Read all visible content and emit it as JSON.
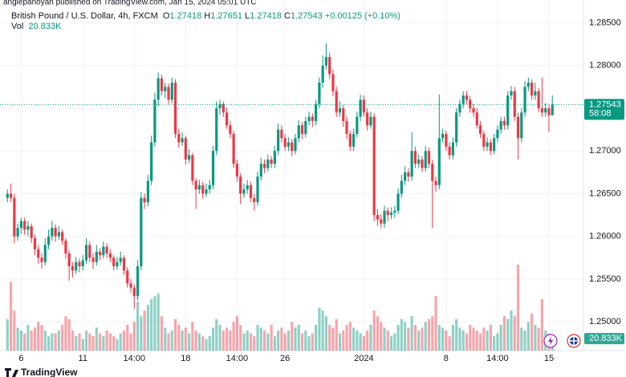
{
  "header": {
    "publisher_line": "angiepanoyan published on TradingView.com, Jan 15, 2024 05:01 UTC",
    "symbol": "British Pound / U.S. Dollar, 4h, FXCM",
    "ohlc_letters": [
      "O",
      "H",
      "L",
      "C"
    ],
    "change": "+0.00125 (+0.10%)",
    "volume_title": "Vol",
    "volume_label": "20.833K",
    "countdown": "58:08",
    "logo": "TradingView"
  },
  "chart_data": {
    "type": "candlestick",
    "up_color": "#089981",
    "down_color": "#f23645",
    "grid": true,
    "ylim": [
      1.2465,
      1.2872
    ],
    "yticks": [
      {
        "value": 1.25,
        "label": "1.25000"
      },
      {
        "value": 1.255,
        "label": "1.25500"
      },
      {
        "value": 1.26,
        "label": "1.26000"
      },
      {
        "value": 1.265,
        "label": "1.26500"
      },
      {
        "value": 1.27,
        "label": "1.27000"
      },
      {
        "value": 1.275,
        "label": "1.27500"
      },
      {
        "value": 1.28,
        "label": "1.28000"
      },
      {
        "value": 1.285,
        "label": "1.28500"
      }
    ],
    "categories": [
      null,
      null,
      null,
      null,
      "6",
      null,
      null,
      null,
      null,
      null,
      null,
      null,
      null,
      null,
      null,
      null,
      null,
      null,
      null,
      null,
      null,
      null,
      "11",
      null,
      null,
      null,
      null,
      null,
      null,
      null,
      null,
      null,
      null,
      null,
      null,
      null,
      null,
      "14:00",
      null,
      null,
      null,
      null,
      null,
      null,
      null,
      null,
      null,
      null,
      null,
      null,
      null,
      null,
      "18",
      null,
      null,
      null,
      null,
      null,
      null,
      null,
      null,
      null,
      null,
      null,
      null,
      null,
      null,
      "14:00",
      null,
      null,
      null,
      null,
      null,
      null,
      null,
      null,
      null,
      null,
      null,
      null,
      null,
      "26",
      null,
      null,
      null,
      null,
      null,
      null,
      null,
      null,
      null,
      null,
      null,
      null,
      null,
      null,
      null,
      null,
      null,
      null,
      null,
      null,
      null,
      null,
      "2024",
      null,
      null,
      null,
      null,
      null,
      null,
      null,
      null,
      null,
      null,
      null,
      null,
      null,
      null,
      null,
      null,
      null,
      null,
      null,
      null,
      null,
      null,
      null,
      "8",
      null,
      null,
      null,
      null,
      null,
      null,
      null,
      null,
      null,
      null,
      null,
      null,
      null,
      null,
      "14:00",
      null,
      null,
      null,
      null,
      null,
      null,
      null,
      null,
      null,
      null,
      null,
      null,
      null,
      null,
      "15",
      null
    ],
    "ohlc": [
      [
        1.2645,
        1.2655,
        1.264,
        1.265
      ],
      [
        1.265,
        1.2662,
        1.264,
        1.2645
      ],
      [
        1.2645,
        1.265,
        1.2592,
        1.26
      ],
      [
        1.26,
        1.2615,
        1.2595,
        1.261
      ],
      [
        1.261,
        1.2622,
        1.2603,
        1.2618
      ],
      [
        1.2618,
        1.2622,
        1.2602,
        1.2608
      ],
      [
        1.2608,
        1.2618,
        1.26,
        1.2612
      ],
      [
        1.2612,
        1.2615,
        1.2592,
        1.2598
      ],
      [
        1.2598,
        1.2602,
        1.2578,
        1.2585
      ],
      [
        1.2585,
        1.259,
        1.2568,
        1.2575
      ],
      [
        1.2575,
        1.258,
        1.2562,
        1.257
      ],
      [
        1.257,
        1.2598,
        1.2566,
        1.259
      ],
      [
        1.259,
        1.2608,
        1.2585,
        1.26
      ],
      [
        1.26,
        1.2618,
        1.2595,
        1.261
      ],
      [
        1.261,
        1.2614,
        1.2594,
        1.26
      ],
      [
        1.26,
        1.2612,
        1.2596,
        1.2605
      ],
      [
        1.2605,
        1.2608,
        1.259,
        1.2595
      ],
      [
        1.2595,
        1.2598,
        1.2574,
        1.258
      ],
      [
        1.258,
        1.2584,
        1.2548,
        1.2565
      ],
      [
        1.2565,
        1.257,
        1.2552,
        1.256
      ],
      [
        1.256,
        1.2576,
        1.2556,
        1.257
      ],
      [
        1.257,
        1.2574,
        1.2558,
        1.2565
      ],
      [
        1.2565,
        1.2578,
        1.256,
        1.2572
      ],
      [
        1.2572,
        1.2598,
        1.2568,
        1.259
      ],
      [
        1.259,
        1.2594,
        1.257,
        1.2575
      ],
      [
        1.2575,
        1.258,
        1.2562,
        1.257
      ],
      [
        1.257,
        1.259,
        1.2566,
        1.2582
      ],
      [
        1.2582,
        1.2586,
        1.2572,
        1.2578
      ],
      [
        1.2578,
        1.2594,
        1.2574,
        1.2588
      ],
      [
        1.2588,
        1.2592,
        1.2575,
        1.258
      ],
      [
        1.258,
        1.2585,
        1.257,
        1.2575
      ],
      [
        1.2575,
        1.2578,
        1.256,
        1.2565
      ],
      [
        1.2565,
        1.2576,
        1.2561,
        1.257
      ],
      [
        1.257,
        1.2582,
        1.2566,
        1.2575
      ],
      [
        1.2575,
        1.2578,
        1.2555,
        1.256
      ],
      [
        1.256,
        1.2564,
        1.254,
        1.2545
      ],
      [
        1.2545,
        1.255,
        1.2534,
        1.254
      ],
      [
        1.254,
        1.2544,
        1.2515,
        1.253
      ],
      [
        1.253,
        1.2572,
        1.2525,
        1.2565
      ],
      [
        1.2565,
        1.2652,
        1.256,
        1.2645
      ],
      [
        1.2645,
        1.265,
        1.2632,
        1.264
      ],
      [
        1.264,
        1.2672,
        1.2635,
        1.2665
      ],
      [
        1.2665,
        1.2718,
        1.266,
        1.271
      ],
      [
        1.271,
        1.2768,
        1.2705,
        1.276
      ],
      [
        1.276,
        1.2792,
        1.2752,
        1.2785
      ],
      [
        1.2785,
        1.2789,
        1.2765,
        1.277
      ],
      [
        1.277,
        1.278,
        1.2762,
        1.2775
      ],
      [
        1.2775,
        1.2779,
        1.2755,
        1.276
      ],
      [
        1.276,
        1.2786,
        1.2756,
        1.278
      ],
      [
        1.278,
        1.2784,
        1.2715,
        1.272
      ],
      [
        1.272,
        1.2726,
        1.2704,
        1.271
      ],
      [
        1.271,
        1.2722,
        1.2706,
        1.2715
      ],
      [
        1.2715,
        1.2718,
        1.2684,
        1.269
      ],
      [
        1.269,
        1.2702,
        1.2686,
        1.2695
      ],
      [
        1.2695,
        1.2698,
        1.266,
        1.2665
      ],
      [
        1.2665,
        1.2668,
        1.2632,
        1.2655
      ],
      [
        1.2655,
        1.2666,
        1.265,
        1.266
      ],
      [
        1.266,
        1.2664,
        1.2644,
        1.265
      ],
      [
        1.265,
        1.2662,
        1.2646,
        1.2655
      ],
      [
        1.2655,
        1.2666,
        1.265,
        1.266
      ],
      [
        1.266,
        1.2706,
        1.2655,
        1.27
      ],
      [
        1.27,
        1.2758,
        1.2695,
        1.275
      ],
      [
        1.275,
        1.276,
        1.2742,
        1.2755
      ],
      [
        1.2755,
        1.2758,
        1.274,
        1.2745
      ],
      [
        1.2745,
        1.275,
        1.2726,
        1.273
      ],
      [
        1.273,
        1.2735,
        1.2715,
        1.272
      ],
      [
        1.272,
        1.2724,
        1.268,
        1.2685
      ],
      [
        1.2685,
        1.269,
        1.2664,
        1.267
      ],
      [
        1.267,
        1.2674,
        1.2638,
        1.265
      ],
      [
        1.265,
        1.2662,
        1.2645,
        1.2655
      ],
      [
        1.2655,
        1.2666,
        1.265,
        1.266
      ],
      [
        1.266,
        1.2664,
        1.264,
        1.2645
      ],
      [
        1.2645,
        1.265,
        1.263,
        1.264
      ],
      [
        1.264,
        1.2676,
        1.2636,
        1.267
      ],
      [
        1.267,
        1.2692,
        1.2665,
        1.2685
      ],
      [
        1.2685,
        1.269,
        1.2674,
        1.268
      ],
      [
        1.268,
        1.2696,
        1.2676,
        1.269
      ],
      [
        1.269,
        1.2694,
        1.268,
        1.2685
      ],
      [
        1.2685,
        1.2706,
        1.268,
        1.27
      ],
      [
        1.27,
        1.2732,
        1.2695,
        1.2725
      ],
      [
        1.2725,
        1.273,
        1.271,
        1.2715
      ],
      [
        1.2715,
        1.272,
        1.27,
        1.2705
      ],
      [
        1.2705,
        1.2716,
        1.27,
        1.271
      ],
      [
        1.271,
        1.2714,
        1.2694,
        1.27
      ],
      [
        1.27,
        1.272,
        1.2696,
        1.2715
      ],
      [
        1.2715,
        1.2736,
        1.271,
        1.273
      ],
      [
        1.273,
        1.2734,
        1.2714,
        1.272
      ],
      [
        1.272,
        1.274,
        1.2716,
        1.2735
      ],
      [
        1.2735,
        1.2746,
        1.273,
        1.274
      ],
      [
        1.274,
        1.2744,
        1.2728,
        1.2735
      ],
      [
        1.2735,
        1.276,
        1.273,
        1.2755
      ],
      [
        1.2755,
        1.2786,
        1.275,
        1.278
      ],
      [
        1.278,
        1.2812,
        1.2774,
        1.28
      ],
      [
        1.28,
        1.2826,
        1.2795,
        1.281
      ],
      [
        1.281,
        1.2815,
        1.2784,
        1.279
      ],
      [
        1.279,
        1.2795,
        1.2764,
        1.277
      ],
      [
        1.277,
        1.2775,
        1.274,
        1.2745
      ],
      [
        1.2745,
        1.2758,
        1.274,
        1.275
      ],
      [
        1.275,
        1.2754,
        1.2728,
        1.2735
      ],
      [
        1.2735,
        1.274,
        1.2714,
        1.272
      ],
      [
        1.272,
        1.2724,
        1.27,
        1.2705
      ],
      [
        1.2705,
        1.2726,
        1.27,
        1.272
      ],
      [
        1.272,
        1.2746,
        1.2716,
        1.274
      ],
      [
        1.274,
        1.2766,
        1.2735,
        1.276
      ],
      [
        1.276,
        1.2765,
        1.274,
        1.2745
      ],
      [
        1.2745,
        1.275,
        1.2724,
        1.273
      ],
      [
        1.273,
        1.2746,
        1.2726,
        1.274
      ],
      [
        1.274,
        1.2744,
        1.2618,
        1.2625
      ],
      [
        1.2625,
        1.2632,
        1.2612,
        1.262
      ],
      [
        1.262,
        1.2626,
        1.261,
        1.2615
      ],
      [
        1.2615,
        1.2636,
        1.261,
        1.263
      ],
      [
        1.263,
        1.2634,
        1.2618,
        1.2625
      ],
      [
        1.2625,
        1.2634,
        1.262,
        1.2628
      ],
      [
        1.2628,
        1.2636,
        1.2622,
        1.263
      ],
      [
        1.263,
        1.2656,
        1.2626,
        1.265
      ],
      [
        1.265,
        1.2672,
        1.2645,
        1.2665
      ],
      [
        1.2665,
        1.2682,
        1.266,
        1.2675
      ],
      [
        1.2675,
        1.268,
        1.2664,
        1.267
      ],
      [
        1.267,
        1.2722,
        1.2665,
        1.27
      ],
      [
        1.27,
        1.2705,
        1.268,
        1.2685
      ],
      [
        1.2685,
        1.2696,
        1.268,
        1.269
      ],
      [
        1.269,
        1.2694,
        1.2675,
        1.268
      ],
      [
        1.268,
        1.2706,
        1.2676,
        1.27
      ],
      [
        1.27,
        1.2704,
        1.268,
        1.2685
      ],
      [
        1.2685,
        1.269,
        1.261,
        1.2665
      ],
      [
        1.2665,
        1.267,
        1.2652,
        1.266
      ],
      [
        1.266,
        1.2766,
        1.2655,
        1.2715
      ],
      [
        1.2715,
        1.2726,
        1.271,
        1.272
      ],
      [
        1.272,
        1.2724,
        1.27,
        1.2705
      ],
      [
        1.2705,
        1.271,
        1.269,
        1.2695
      ],
      [
        1.2695,
        1.2716,
        1.269,
        1.271
      ],
      [
        1.271,
        1.275,
        1.2705,
        1.2745
      ],
      [
        1.2745,
        1.276,
        1.274,
        1.2755
      ],
      [
        1.2755,
        1.277,
        1.275,
        1.2765
      ],
      [
        1.2765,
        1.277,
        1.2755,
        1.276
      ],
      [
        1.276,
        1.2764,
        1.2745,
        1.275
      ],
      [
        1.275,
        1.2755,
        1.274,
        1.2745
      ],
      [
        1.2745,
        1.275,
        1.2726,
        1.273
      ],
      [
        1.273,
        1.2735,
        1.2715,
        1.272
      ],
      [
        1.272,
        1.2724,
        1.27,
        1.2705
      ],
      [
        1.2705,
        1.2716,
        1.27,
        1.271
      ],
      [
        1.271,
        1.2714,
        1.2695,
        1.27
      ],
      [
        1.27,
        1.272,
        1.2696,
        1.2715
      ],
      [
        1.2715,
        1.273,
        1.271,
        1.2725
      ],
      [
        1.2725,
        1.274,
        1.272,
        1.2735
      ],
      [
        1.2735,
        1.274,
        1.2725,
        1.273
      ],
      [
        1.273,
        1.277,
        1.2725,
        1.2765
      ],
      [
        1.2765,
        1.2776,
        1.276,
        1.277
      ],
      [
        1.277,
        1.2775,
        1.2735,
        1.274
      ],
      [
        1.274,
        1.2745,
        1.269,
        1.2715
      ],
      [
        1.2715,
        1.275,
        1.271,
        1.2745
      ],
      [
        1.2745,
        1.2782,
        1.274,
        1.2775
      ],
      [
        1.2775,
        1.2786,
        1.277,
        1.278
      ],
      [
        1.278,
        1.2784,
        1.276,
        1.2765
      ],
      [
        1.2765,
        1.278,
        1.276,
        1.277
      ],
      [
        1.277,
        1.2774,
        1.2745,
        1.275
      ],
      [
        1.275,
        1.2786,
        1.274,
        1.2745
      ],
      [
        1.2745,
        1.2756,
        1.274,
        1.275
      ],
      [
        1.275,
        1.2754,
        1.2722,
        1.27418
      ],
      [
        1.27418,
        1.27651,
        1.27418,
        1.27543
      ]
    ],
    "volume": [
      55,
      120,
      70,
      40,
      35,
      30,
      45,
      35,
      40,
      50,
      45,
      35,
      25,
      30,
      30,
      35,
      45,
      60,
      55,
      35,
      25,
      30,
      20,
      35,
      30,
      25,
      40,
      30,
      25,
      35,
      30,
      25,
      20,
      30,
      35,
      45,
      30,
      50,
      85,
      60,
      70,
      80,
      90,
      95,
      100,
      60,
      40,
      30,
      35,
      55,
      45,
      35,
      40,
      30,
      50,
      35,
      30,
      25,
      20,
      25,
      40,
      55,
      45,
      35,
      40,
      35,
      50,
      60,
      45,
      30,
      35,
      30,
      25,
      45,
      40,
      35,
      30,
      45,
      25,
      35,
      40,
      30,
      35,
      50,
      40,
      45,
      30,
      35,
      25,
      30,
      45,
      75,
      70,
      60,
      45,
      40,
      55,
      30,
      35,
      45,
      50,
      40,
      35,
      30,
      25,
      35,
      45,
      70,
      60,
      50,
      40,
      35,
      25,
      30,
      45,
      55,
      50,
      40,
      60,
      45,
      35,
      40,
      50,
      55,
      60,
      95,
      45,
      40,
      35,
      25,
      45,
      55,
      40,
      35,
      30,
      45,
      40,
      35,
      30,
      40,
      35,
      45,
      25,
      30,
      45,
      60,
      55,
      70,
      60,
      150,
      40,
      35,
      50,
      65,
      45,
      40,
      90,
      35,
      30,
      20.833
    ]
  }
}
